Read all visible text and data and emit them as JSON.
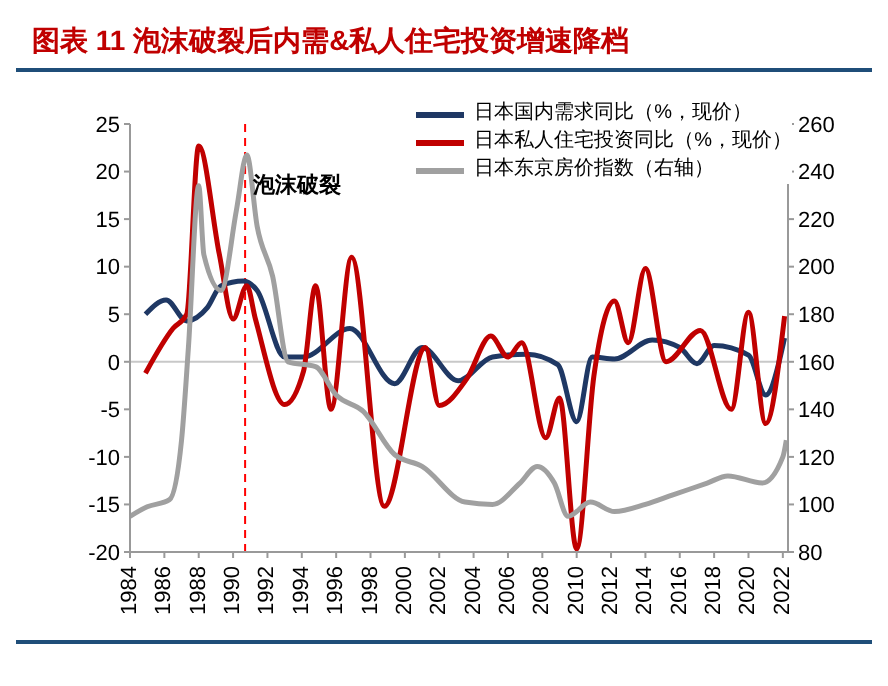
{
  "chart_data": {
    "type": "line",
    "title": "图表 11  泡沫破裂后内需&私人住宅投资增速降档",
    "xlim": [
      1984,
      2022.3
    ],
    "xticks": [
      1984,
      1986,
      1988,
      1990,
      1992,
      1994,
      1996,
      1998,
      2000,
      2002,
      2004,
      2006,
      2008,
      2010,
      2012,
      2014,
      2016,
      2018,
      2020,
      2022
    ],
    "ylim": [
      -20,
      25
    ],
    "yticks": [
      -20,
      -15,
      -10,
      -5,
      0,
      5,
      10,
      15,
      20,
      25
    ],
    "y2lim": [
      80,
      260
    ],
    "y2ticks": [
      80,
      100,
      120,
      140,
      160,
      180,
      200,
      220,
      240,
      260
    ],
    "legend": "top right",
    "grid": false,
    "marker": "none",
    "ref_lines": [
      {
        "axis": "x",
        "value": 1990.7,
        "label": "泡沫破裂",
        "color": "#ff0000",
        "line_style": "dashed"
      },
      {
        "axis": "y",
        "value": 0,
        "label": null,
        "color": "#c8c8c8",
        "line_style": "solid"
      }
    ],
    "series": [
      {
        "name": "日本国内需求同比（%，现价）",
        "color": "#1f3864",
        "x": [
          1984.9,
          1986.1,
          1987.3,
          1988.5,
          1989.3,
          1990.6,
          1991.4,
          1993,
          1994.1,
          1996.8,
          1999.4,
          2001,
          2003.1,
          2005.1,
          2007.1,
          2008.9,
          2010,
          2010.9,
          2012.2,
          2014.4,
          2016,
          2017,
          2018,
          2020,
          2021,
          2022.1
        ],
        "values": [
          5,
          6.5,
          4.3,
          5.7,
          8,
          8.5,
          7.5,
          0.5,
          0.5,
          3.5,
          -2.3,
          1.5,
          -2,
          0.5,
          0.8,
          -0.3,
          -6.3,
          0.5,
          0.3,
          2.3,
          1.5,
          -0.2,
          1.7,
          0.7,
          -3.5,
          2.5
        ]
      },
      {
        "name": "日本私人住宅投资同比（%，现价）",
        "color": "#c00000",
        "x": [
          1984.9,
          1986.5,
          1987.3,
          1988,
          1989.2,
          1990,
          1990.8,
          1991.3,
          1993,
          1994.1,
          1994.8,
          1995.7,
          1996.9,
          1998.8,
          2001.2,
          2002,
          2003.6,
          2005,
          2006,
          2006.8,
          2008.2,
          2009,
          2010,
          2011,
          2012.2,
          2013,
          2014,
          2015.2,
          2017.2,
          2019,
          2020,
          2021,
          2022.1
        ],
        "values": [
          -1.2,
          3.5,
          5,
          22.7,
          11.3,
          4.5,
          8,
          4.5,
          -4.5,
          -1,
          8,
          -5,
          11,
          -15.2,
          1.5,
          -4.6,
          -1.8,
          2.7,
          0.5,
          2,
          -8,
          -3.8,
          -19.7,
          -1.5,
          6.4,
          2,
          9.8,
          0,
          3.3,
          -5,
          5.2,
          -6.5,
          4.8
        ]
      },
      {
        "name": "日本东京房价指数（右轴）",
        "color": "#a0a0a0",
        "axis": "y2",
        "x": [
          1984,
          1985,
          1986.3,
          1987,
          1987.4,
          1988,
          1988.3,
          1989.3,
          1990.2,
          1990.8,
          1991.4,
          1992.3,
          1993.2,
          1994.8,
          1996,
          1997.6,
          1999.4,
          2001,
          2003.5,
          2005.1,
          2006.7,
          2007.7,
          2008.7,
          2009.5,
          2010.8,
          2012.2,
          2014,
          2015.6,
          2017.6,
          2018.8,
          2020.8,
          2022,
          2022.2
        ],
        "values": [
          95,
          99,
          102,
          127,
          166,
          234,
          205,
          190,
          224,
          247,
          217,
          196,
          160,
          158,
          146,
          139,
          121,
          116,
          101,
          100,
          109,
          116,
          109,
          95,
          101,
          97,
          100,
          104,
          109,
          112,
          109,
          120,
          127
        ]
      }
    ]
  }
}
